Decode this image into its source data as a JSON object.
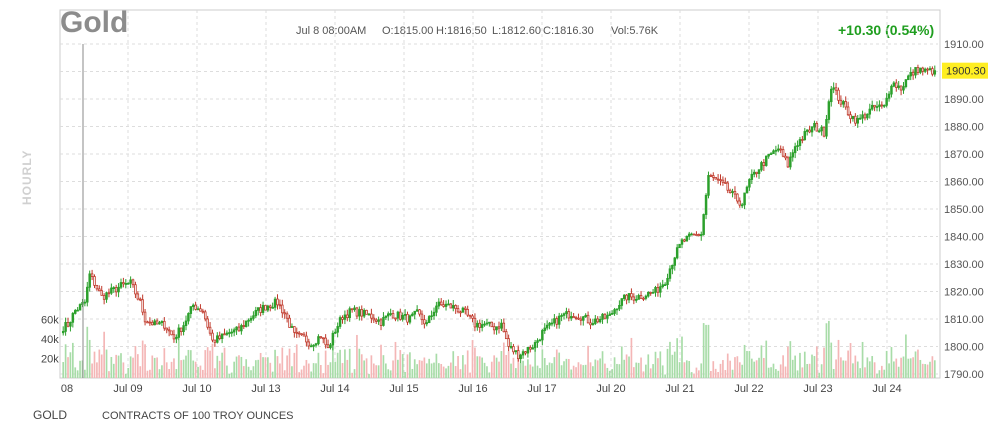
{
  "header": {
    "title": "Gold",
    "timestamp": "Jul 8 08:00AM",
    "open": "O:1815.00",
    "high": "H:1816.50",
    "low": "L:1812.60",
    "close": "C:1816.30",
    "volume": "Vol:5.76K",
    "change": "+10.30 (0.54%)"
  },
  "side_label": "HOURLY",
  "footer": {
    "symbol": "GOLD",
    "description": "CONTRACTS OF 100 TROY OUNCES"
  },
  "colors": {
    "up": "#2ca02c",
    "down": "#c0392b",
    "vol_up": "#a8dca8",
    "vol_down": "#f4b6b6",
    "last_price_bg": "#ffee22",
    "change_text": "#1f9e1f"
  },
  "chart_data": {
    "type": "candlestick",
    "x_tick_labels": [
      "08",
      "Jul 09",
      "Jul 10",
      "Jul 13",
      "Jul 14",
      "Jul 15",
      "Jul 16",
      "Jul 17",
      "Jul 20",
      "Jul 21",
      "Jul 22",
      "Jul 23",
      "Jul 24"
    ],
    "y_ticks": [
      1790,
      1800,
      1810,
      1820,
      1830,
      1840,
      1850,
      1860,
      1870,
      1880,
      1890,
      1900,
      1910
    ],
    "y_tick_labels": [
      "1790.00",
      "1800.00",
      "1810.00",
      "1820.00",
      "1830.00",
      "1840.00",
      "1850.00",
      "1860.00",
      "1870.00",
      "1880.00",
      "1890.00",
      "1900.00",
      "1910.00"
    ],
    "ylim": [
      1787,
      1912
    ],
    "last_price": 1900.3,
    "last_price_label": "1900.30",
    "volume_tick_labels": [
      "60k",
      "40k",
      "20k"
    ],
    "volume_ylim": [
      0,
      80000
    ],
    "anchors": [
      [
        0,
        1807
      ],
      [
        2,
        1808
      ],
      [
        5,
        1813
      ],
      [
        9,
        1816
      ],
      [
        11,
        1826
      ],
      [
        13,
        1823
      ],
      [
        16,
        1818
      ],
      [
        20,
        1820
      ],
      [
        24,
        1822
      ],
      [
        28,
        1823
      ],
      [
        32,
        1816
      ],
      [
        34,
        1810
      ],
      [
        38,
        1808
      ],
      [
        42,
        1808
      ],
      [
        46,
        1803
      ],
      [
        50,
        1808
      ],
      [
        54,
        1815
      ],
      [
        58,
        1813
      ],
      [
        62,
        1802
      ],
      [
        65,
        1803
      ],
      [
        69,
        1805
      ],
      [
        73,
        1806
      ],
      [
        77,
        1810
      ],
      [
        81,
        1813
      ],
      [
        85,
        1815
      ],
      [
        89,
        1816
      ],
      [
        92,
        1812
      ],
      [
        96,
        1804
      ],
      [
        100,
        1803
      ],
      [
        103,
        1801
      ],
      [
        107,
        1804
      ],
      [
        110,
        1799
      ],
      [
        113,
        1806
      ],
      [
        116,
        1811
      ],
      [
        120,
        1813
      ],
      [
        124,
        1812
      ],
      [
        128,
        1811
      ],
      [
        132,
        1809
      ],
      [
        136,
        1812
      ],
      [
        140,
        1811
      ],
      [
        144,
        1810
      ],
      [
        147,
        1812
      ],
      [
        151,
        1808
      ],
      [
        155,
        1815
      ],
      [
        159,
        1815
      ],
      [
        163,
        1814
      ],
      [
        167,
        1812
      ],
      [
        171,
        1808
      ],
      [
        175,
        1808
      ],
      [
        179,
        1807
      ],
      [
        182,
        1808
      ],
      [
        185,
        1800
      ],
      [
        189,
        1797
      ],
      [
        193,
        1799
      ],
      [
        196,
        1801
      ],
      [
        199,
        1805
      ],
      [
        203,
        1808
      ],
      [
        207,
        1811
      ],
      [
        211,
        1812
      ],
      [
        215,
        1811
      ],
      [
        219,
        1809
      ],
      [
        223,
        1810
      ],
      [
        227,
        1811
      ],
      [
        230,
        1815
      ],
      [
        234,
        1818
      ],
      [
        238,
        1818
      ],
      [
        242,
        1819
      ],
      [
        246,
        1820
      ],
      [
        250,
        1824
      ],
      [
        254,
        1833
      ],
      [
        257,
        1838
      ],
      [
        261,
        1840
      ],
      [
        265,
        1841
      ],
      [
        268,
        1862
      ],
      [
        272,
        1860
      ],
      [
        275,
        1858
      ],
      [
        279,
        1854
      ],
      [
        282,
        1852
      ],
      [
        285,
        1860
      ],
      [
        289,
        1865
      ],
      [
        293,
        1869
      ],
      [
        297,
        1872
      ],
      [
        301,
        1866
      ],
      [
        304,
        1873
      ],
      [
        308,
        1877
      ],
      [
        312,
        1880
      ],
      [
        316,
        1878
      ],
      [
        319,
        1895
      ],
      [
        323,
        1889
      ],
      [
        327,
        1884
      ],
      [
        330,
        1882
      ],
      [
        334,
        1885
      ],
      [
        337,
        1887
      ],
      [
        341,
        1887
      ],
      [
        344,
        1896
      ],
      [
        348,
        1894
      ],
      [
        351,
        1898
      ],
      [
        355,
        1901
      ],
      [
        358,
        1900
      ],
      [
        362,
        1900.3
      ]
    ]
  }
}
